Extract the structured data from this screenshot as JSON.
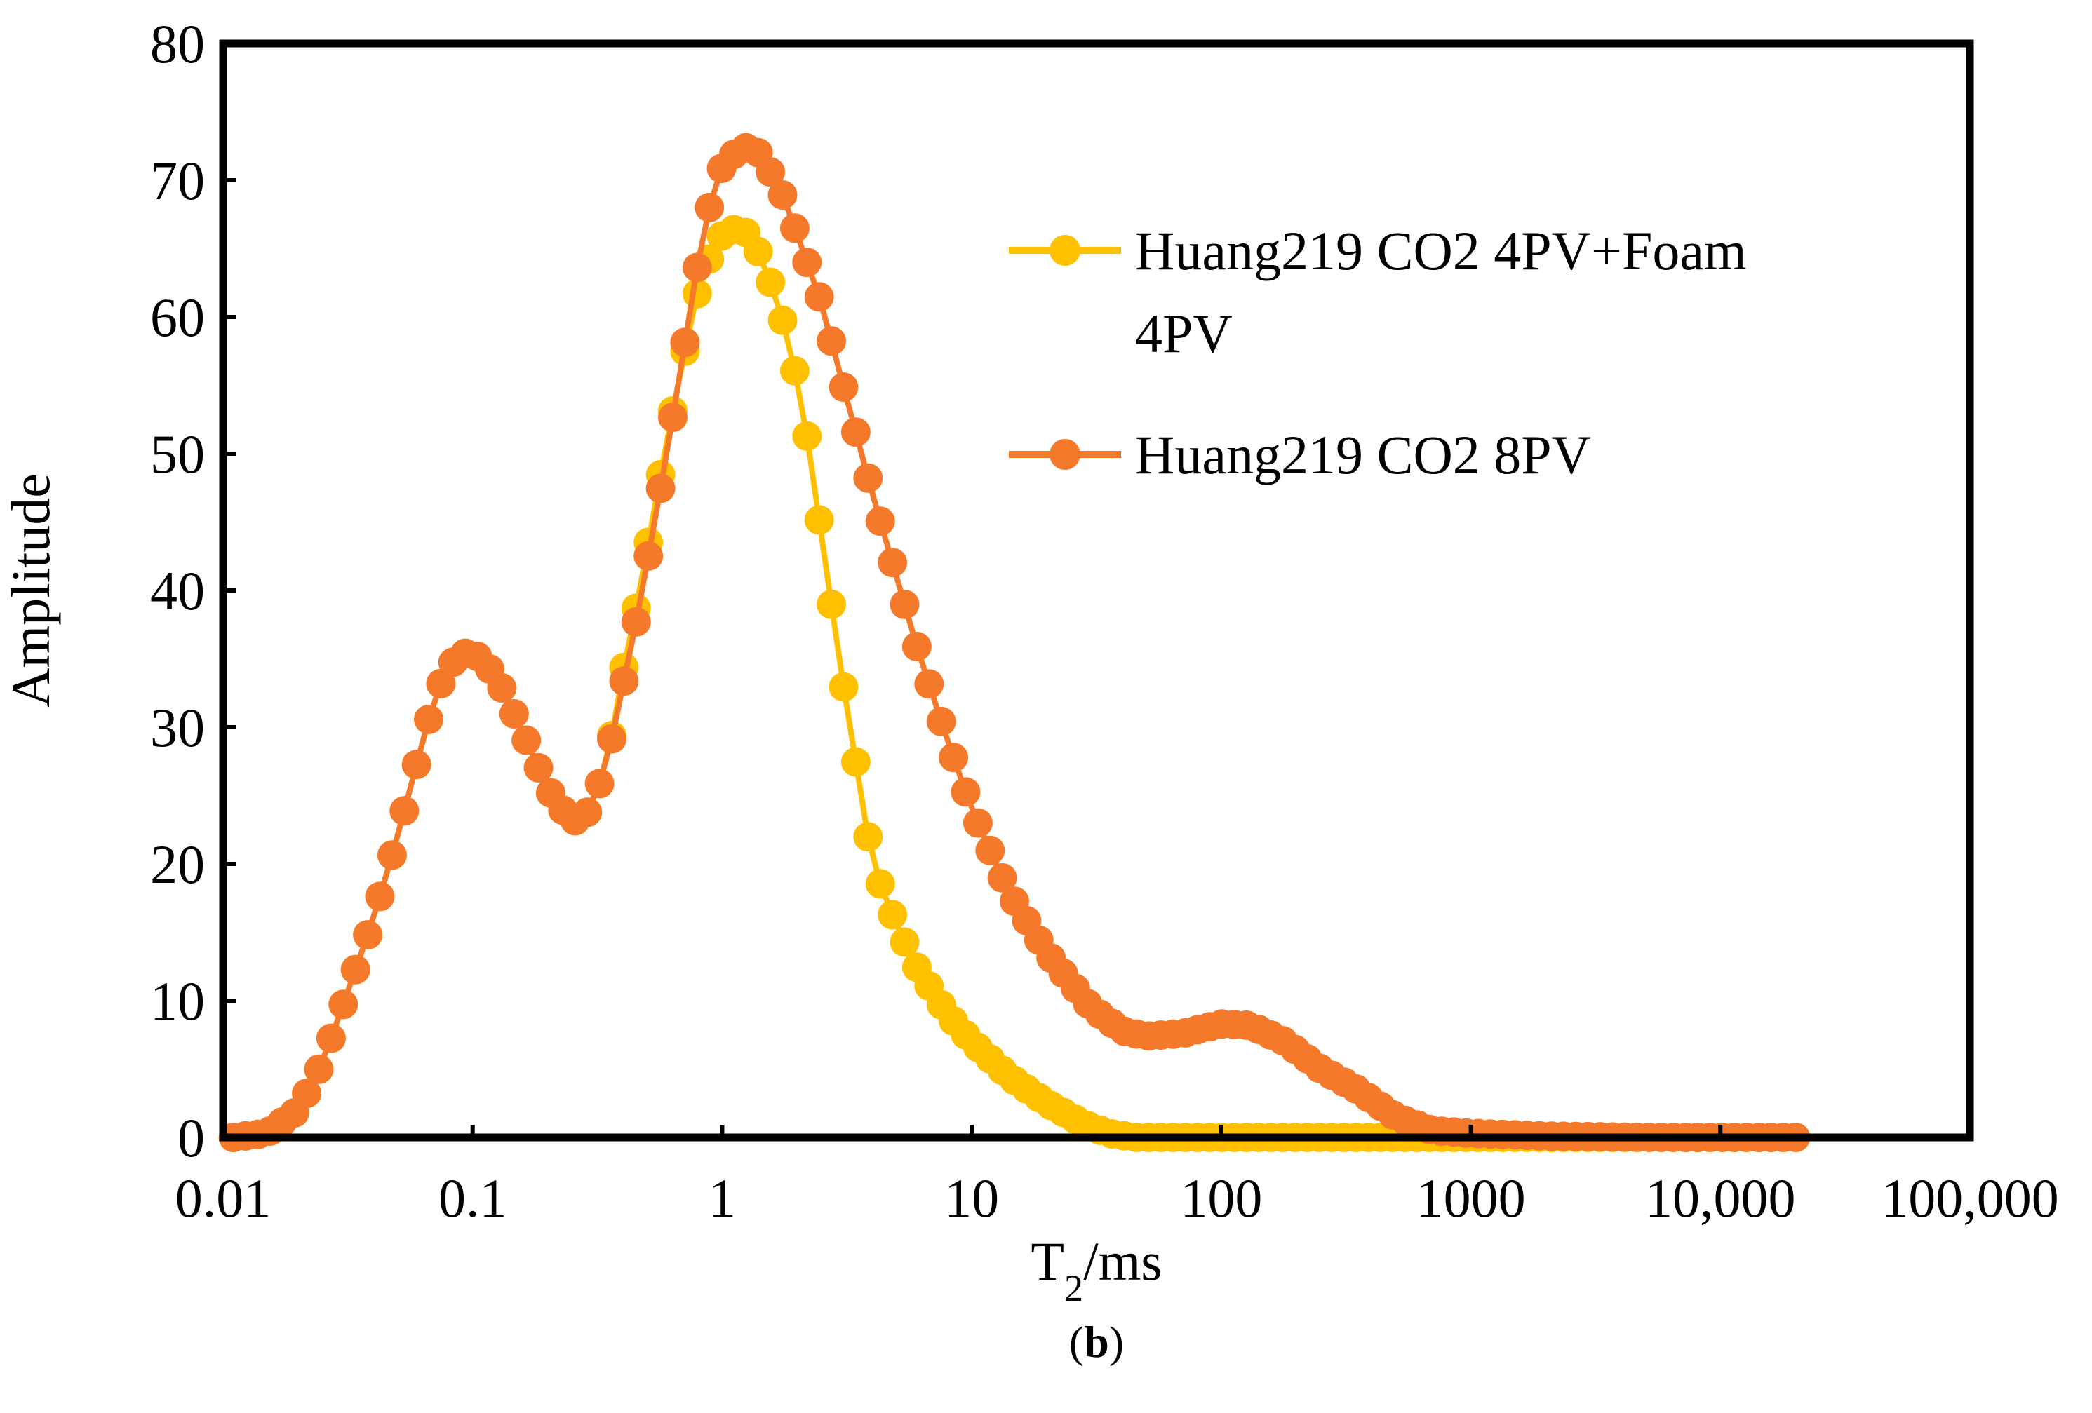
{
  "chart_data": {
    "type": "scatter",
    "title": "",
    "caption": "b",
    "xlabel": {
      "main": "T",
      "sub": "2",
      "unit": "/ms"
    },
    "ylabel": "Amplitude",
    "xscale": "log",
    "xlim": [
      0.01,
      100000
    ],
    "ylim": [
      0,
      80
    ],
    "x_ticks": [
      {
        "value": 0.01,
        "label": "0.01"
      },
      {
        "value": 0.1,
        "label": "0.1"
      },
      {
        "value": 1,
        "label": "1"
      },
      {
        "value": 10,
        "label": "10"
      },
      {
        "value": 100,
        "label": "100"
      },
      {
        "value": 1000,
        "label": "1000"
      },
      {
        "value": 10000,
        "label": "10,000"
      },
      {
        "value": 100000,
        "label": "100,000"
      }
    ],
    "y_ticks": [
      {
        "value": 0,
        "label": "0"
      },
      {
        "value": 10,
        "label": "10"
      },
      {
        "value": 20,
        "label": "20"
      },
      {
        "value": 30,
        "label": "30"
      },
      {
        "value": 40,
        "label": "40"
      },
      {
        "value": 50,
        "label": "50"
      },
      {
        "value": 60,
        "label": "60"
      },
      {
        "value": 70,
        "label": "70"
      },
      {
        "value": 80,
        "label": "80"
      }
    ],
    "legend_position": "upper-right inside plot",
    "series": [
      {
        "name": "Huang219 CO2 4PV+Foam 4PV",
        "legend_lines": [
          "Huang219 CO2 4PV+Foam",
          "4PV"
        ],
        "color": "#FFC000",
        "t2_range": [
          0.011,
          20000
        ],
        "points_count": 129,
        "anchors": [
          [
            0.011,
            0.0
          ],
          [
            0.015,
            0.3
          ],
          [
            0.02,
            2.0
          ],
          [
            0.025,
            5.5
          ],
          [
            0.03,
            9.5
          ],
          [
            0.04,
            16.0
          ],
          [
            0.05,
            22.0
          ],
          [
            0.06,
            27.5
          ],
          [
            0.07,
            32.0
          ],
          [
            0.08,
            34.5
          ],
          [
            0.095,
            35.5
          ],
          [
            0.11,
            35.0
          ],
          [
            0.13,
            33.0
          ],
          [
            0.16,
            29.5
          ],
          [
            0.2,
            25.5
          ],
          [
            0.25,
            23.0
          ],
          [
            0.3,
            24.0
          ],
          [
            0.35,
            28.0
          ],
          [
            0.4,
            34.0
          ],
          [
            0.45,
            38.5
          ],
          [
            0.5,
            43.0
          ],
          [
            0.6,
            51.0
          ],
          [
            0.7,
            57.0
          ],
          [
            0.8,
            62.0
          ],
          [
            0.9,
            64.5
          ],
          [
            1.0,
            66.0
          ],
          [
            1.15,
            66.5
          ],
          [
            1.3,
            66.0
          ],
          [
            1.5,
            63.5
          ],
          [
            1.8,
            59.0
          ],
          [
            2.1,
            53.5
          ],
          [
            2.5,
            44.0
          ],
          [
            3.0,
            34.0
          ],
          [
            3.5,
            26.5
          ],
          [
            4.0,
            20.0
          ],
          [
            5.0,
            15.5
          ],
          [
            6.0,
            12.5
          ],
          [
            8.0,
            9.0
          ],
          [
            10.0,
            7.0
          ],
          [
            14.0,
            4.5
          ],
          [
            20.0,
            2.5
          ],
          [
            28.0,
            1.0
          ],
          [
            35.0,
            0.3
          ],
          [
            45.0,
            0.0
          ],
          [
            100.0,
            0.0
          ],
          [
            1000.0,
            0.0
          ],
          [
            20000.0,
            0.0
          ]
        ]
      },
      {
        "name": "Huang219 CO2 8PV",
        "legend_lines": [
          "Huang219 CO2 8PV"
        ],
        "color": "#F5792A",
        "t2_range": [
          0.011,
          20000
        ],
        "points_count": 129,
        "anchors": [
          [
            0.011,
            0.0
          ],
          [
            0.015,
            0.3
          ],
          [
            0.02,
            2.0
          ],
          [
            0.025,
            5.5
          ],
          [
            0.03,
            9.5
          ],
          [
            0.04,
            16.0
          ],
          [
            0.05,
            22.0
          ],
          [
            0.06,
            27.5
          ],
          [
            0.07,
            32.0
          ],
          [
            0.08,
            34.5
          ],
          [
            0.095,
            35.5
          ],
          [
            0.11,
            35.0
          ],
          [
            0.13,
            33.0
          ],
          [
            0.16,
            29.5
          ],
          [
            0.2,
            25.5
          ],
          [
            0.25,
            23.0
          ],
          [
            0.3,
            24.0
          ],
          [
            0.35,
            28.0
          ],
          [
            0.4,
            33.0
          ],
          [
            0.45,
            37.5
          ],
          [
            0.5,
            42.0
          ],
          [
            0.6,
            50.0
          ],
          [
            0.7,
            57.5
          ],
          [
            0.8,
            64.0
          ],
          [
            0.9,
            68.5
          ],
          [
            1.0,
            71.0
          ],
          [
            1.2,
            72.5
          ],
          [
            1.4,
            72.0
          ],
          [
            1.7,
            69.5
          ],
          [
            2.0,
            66.0
          ],
          [
            2.5,
            61.0
          ],
          [
            3.0,
            55.5
          ],
          [
            3.5,
            51.0
          ],
          [
            4.0,
            47.0
          ],
          [
            5.0,
            41.0
          ],
          [
            6.0,
            36.0
          ],
          [
            8.0,
            29.0
          ],
          [
            10.0,
            24.0
          ],
          [
            14.0,
            18.0
          ],
          [
            20.0,
            13.5
          ],
          [
            30.0,
            9.5
          ],
          [
            40.0,
            7.8
          ],
          [
            50.0,
            7.4
          ],
          [
            70.0,
            7.6
          ],
          [
            100.0,
            8.3
          ],
          [
            130.0,
            8.2
          ],
          [
            180.0,
            7.0
          ],
          [
            250.0,
            5.0
          ],
          [
            350.0,
            3.5
          ],
          [
            500.0,
            1.5
          ],
          [
            700.0,
            0.5
          ],
          [
            1000.0,
            0.3
          ],
          [
            2000.0,
            0.1
          ],
          [
            5000.0,
            0.0
          ],
          [
            20000.0,
            0.0
          ]
        ]
      }
    ]
  }
}
